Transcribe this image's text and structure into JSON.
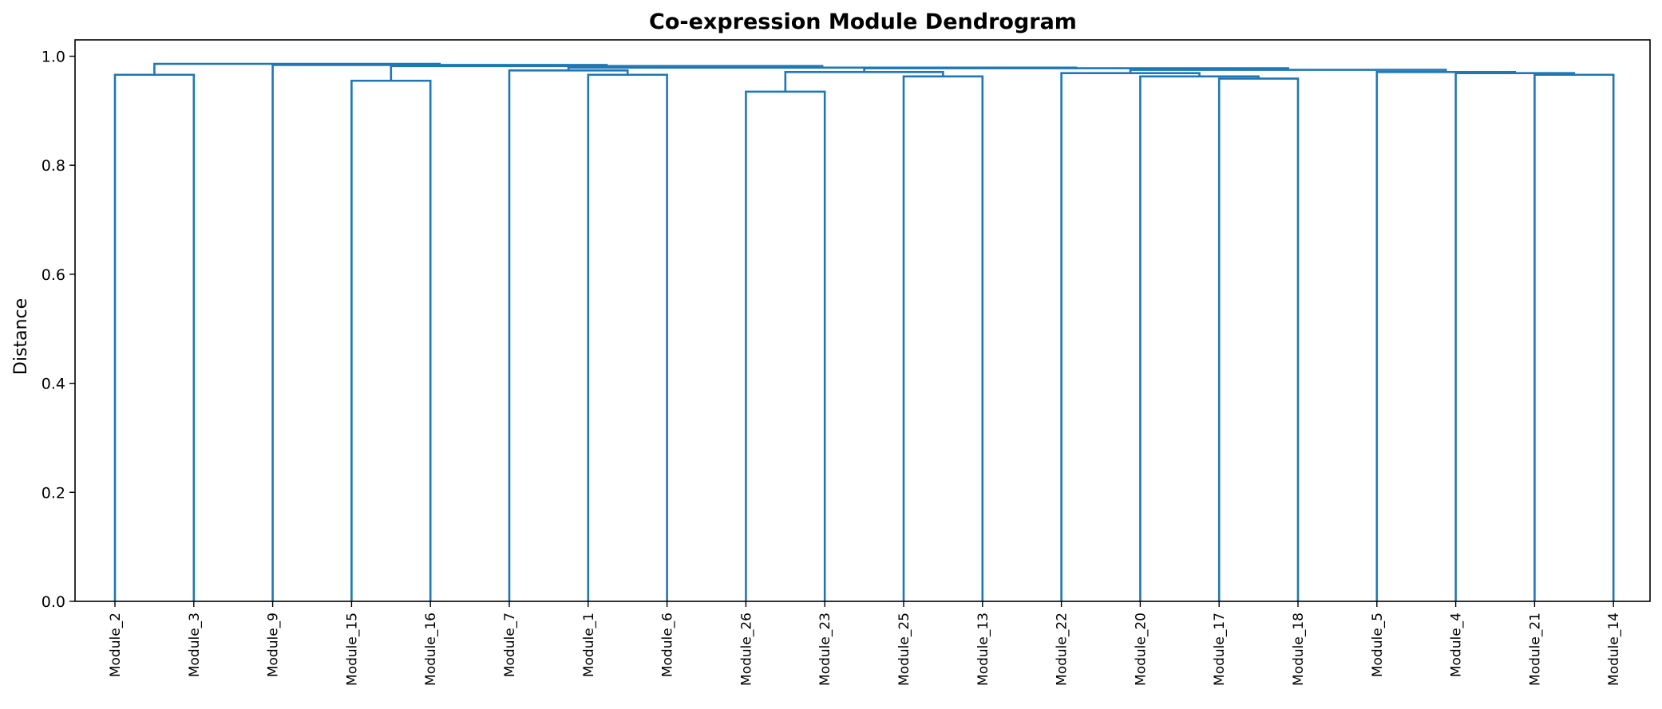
{
  "chart_data": {
    "type": "dendrogram",
    "title": "Co-expression Module Dendrogram",
    "ylabel": "Distance",
    "xlabel": "",
    "ylim": [
      0,
      1.03
    ],
    "yticks": [
      0.0,
      0.2,
      0.4,
      0.6,
      0.8,
      1.0
    ],
    "ytick_labels": [
      "0.0",
      "0.2",
      "0.4",
      "0.6",
      "0.8",
      "1.0"
    ],
    "grid": false,
    "link_color": "#1f77b4",
    "leaves": [
      "Module_2",
      "Module_3",
      "Module_9",
      "Module_15",
      "Module_16",
      "Module_7",
      "Module_1",
      "Module_6",
      "Module_26",
      "Module_23",
      "Module_25",
      "Module_13",
      "Module_22",
      "Module_20",
      "Module_17",
      "Module_18",
      "Module_5",
      "Module_4",
      "Module_21",
      "Module_14"
    ],
    "merges": [
      {
        "id": "c1",
        "left": "Module_2",
        "right": "Module_3",
        "height": 0.966
      },
      {
        "id": "c2",
        "left": "Module_15",
        "right": "Module_16",
        "height": 0.955
      },
      {
        "id": "c3",
        "left": "Module_1",
        "right": "Module_6",
        "height": 0.966
      },
      {
        "id": "c4",
        "left": "Module_7",
        "right": "c3",
        "height": 0.974
      },
      {
        "id": "c5",
        "left": "Module_26",
        "right": "Module_23",
        "height": 0.935
      },
      {
        "id": "c6",
        "left": "Module_25",
        "right": "Module_13",
        "height": 0.963
      },
      {
        "id": "c7",
        "left": "c5",
        "right": "c6",
        "height": 0.971
      },
      {
        "id": "c8",
        "left": "Module_17",
        "right": "Module_18",
        "height": 0.959
      },
      {
        "id": "c9",
        "left": "Module_20",
        "right": "c8",
        "height": 0.963
      },
      {
        "id": "c10",
        "left": "Module_22",
        "right": "c9",
        "height": 0.969
      },
      {
        "id": "c11",
        "left": "Module_21",
        "right": "Module_14",
        "height": 0.966
      },
      {
        "id": "c12",
        "left": "Module_4",
        "right": "c11",
        "height": 0.969
      },
      {
        "id": "c13",
        "left": "Module_5",
        "right": "c12",
        "height": 0.971
      },
      {
        "id": "c14",
        "left": "c10",
        "right": "c13",
        "height": 0.975
      },
      {
        "id": "c15",
        "left": "c7",
        "right": "c14",
        "height": 0.978
      },
      {
        "id": "c16",
        "left": "c4",
        "right": "c15",
        "height": 0.979
      },
      {
        "id": "c17",
        "left": "c2",
        "right": "c16",
        "height": 0.982
      },
      {
        "id": "c18",
        "left": "Module_9",
        "right": "c17",
        "height": 0.984
      },
      {
        "id": "c19",
        "left": "c1",
        "right": "c18",
        "height": 0.986
      }
    ]
  }
}
